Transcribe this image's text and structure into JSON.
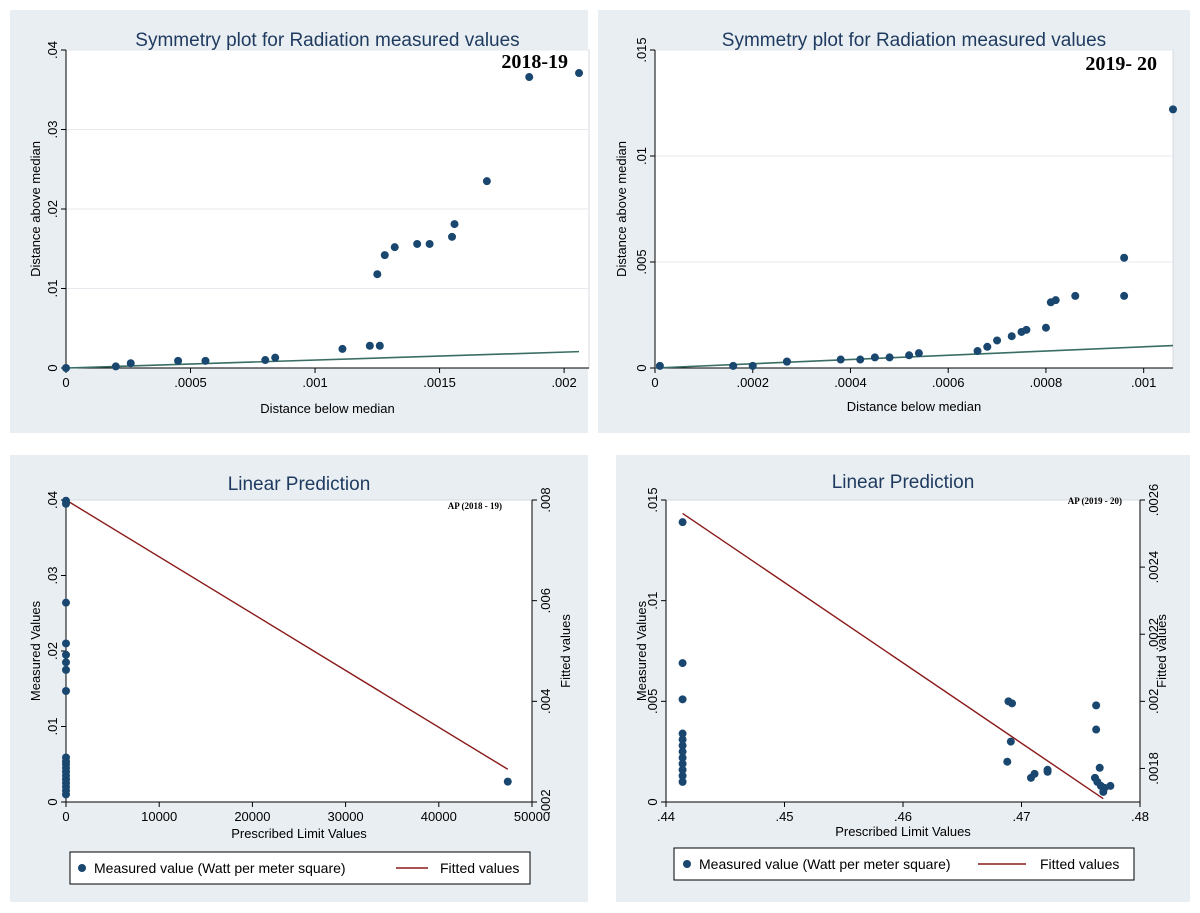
{
  "colors": {
    "panel_bg": "#e9eef2",
    "plot_bg": "#ffffff",
    "marker": "#1a476f",
    "ref_line": "#3a6e64",
    "fit_line": "#8b1a1a",
    "grid": "#e6eaee"
  },
  "chart_data": [
    {
      "type": "scatter",
      "title": "Symmetry plot for Radiation measured values",
      "annotation": "2018-19",
      "xlabel": "Distance below median",
      "ylabel": "Distance above median",
      "xlim": [
        0,
        0.0021
      ],
      "ylim": [
        0,
        0.04
      ],
      "xticks": [
        0,
        0.0005,
        0.001,
        0.0015,
        0.002
      ],
      "xtick_labels": [
        "0",
        ".0005",
        ".001",
        ".0015",
        ".002"
      ],
      "yticks": [
        0,
        0.01,
        0.02,
        0.03,
        0.04
      ],
      "ytick_labels": [
        "0",
        ".01",
        ".02",
        ".03",
        ".04"
      ],
      "grid": true,
      "points": [
        [
          0,
          0
        ],
        [
          0.0002,
          0.0002
        ],
        [
          0.00026,
          0.0006
        ],
        [
          0.00045,
          0.0009
        ],
        [
          0.00056,
          0.0009
        ],
        [
          0.0008,
          0.001
        ],
        [
          0.00084,
          0.0013
        ],
        [
          0.00111,
          0.0024
        ],
        [
          0.00122,
          0.0028
        ],
        [
          0.00126,
          0.0028
        ],
        [
          0.00125,
          0.0118
        ],
        [
          0.00128,
          0.0142
        ],
        [
          0.00132,
          0.0152
        ],
        [
          0.00141,
          0.0156
        ],
        [
          0.00146,
          0.0156
        ],
        [
          0.00155,
          0.0165
        ],
        [
          0.00156,
          0.0181
        ],
        [
          0.00169,
          0.0235
        ],
        [
          0.00186,
          0.0366
        ],
        [
          0.00206,
          0.0371
        ]
      ],
      "reference_line": [
        [
          0,
          0
        ],
        [
          0.00206,
          0.00206
        ]
      ]
    },
    {
      "type": "scatter",
      "title": "Symmetry plot for Radiation measured values",
      "annotation": "2019- 20",
      "xlabel": "Distance below median",
      "ylabel": "Distance above median",
      "xlim": [
        0,
        0.00106
      ],
      "ylim": [
        0,
        0.015
      ],
      "xticks": [
        0,
        0.0002,
        0.0004,
        0.0006,
        0.0008,
        0.001
      ],
      "xtick_labels": [
        "0",
        ".0002",
        ".0004",
        ".0006",
        ".0008",
        ".001"
      ],
      "yticks": [
        0,
        0.005,
        0.01,
        0.015
      ],
      "ytick_labels": [
        "0",
        ".005",
        ".01",
        ".015"
      ],
      "grid": true,
      "points": [
        [
          1e-05,
          0.0001
        ],
        [
          0.00016,
          0.0001
        ],
        [
          0.0002,
          0.0001
        ],
        [
          0.00027,
          0.0003
        ],
        [
          0.00027,
          0.0003
        ],
        [
          0.00038,
          0.0004
        ],
        [
          0.00042,
          0.0004
        ],
        [
          0.00045,
          0.0005
        ],
        [
          0.00048,
          0.0005
        ],
        [
          0.00052,
          0.0006
        ],
        [
          0.00054,
          0.0007
        ],
        [
          0.00066,
          0.0008
        ],
        [
          0.00068,
          0.001
        ],
        [
          0.0007,
          0.0013
        ],
        [
          0.00073,
          0.0015
        ],
        [
          0.00075,
          0.0017
        ],
        [
          0.00076,
          0.0018
        ],
        [
          0.0008,
          0.0019
        ],
        [
          0.00081,
          0.0031
        ],
        [
          0.00082,
          0.0032
        ],
        [
          0.00086,
          0.0034
        ],
        [
          0.00096,
          0.0034
        ],
        [
          0.00096,
          0.0052
        ],
        [
          0.00106,
          0.0122
        ]
      ],
      "reference_line": [
        [
          0,
          0
        ],
        [
          0.00106,
          0.00106
        ]
      ]
    },
    {
      "type": "scatter",
      "title": "Linear Prediction",
      "annotation": "AP (2018 - 19)",
      "xlabel": "Prescribed Limit Values",
      "ylabel": "Measured Values",
      "y2label": "Fitted values",
      "xlim": [
        0,
        50000
      ],
      "ylim": [
        0,
        0.04
      ],
      "y2lim": [
        0.002,
        0.008
      ],
      "xticks": [
        0,
        10000,
        20000,
        30000,
        40000,
        50000
      ],
      "xtick_labels": [
        "0",
        "10000",
        "20000",
        "30000",
        "40000",
        "50000"
      ],
      "yticks": [
        0,
        0.01,
        0.02,
        0.03,
        0.04
      ],
      "ytick_labels": [
        "0",
        ".01",
        ".02",
        ".03",
        ".04"
      ],
      "y2ticks": [
        0.002,
        0.004,
        0.006,
        0.008
      ],
      "y2tick_labels": [
        ".002",
        ".004",
        ".006",
        ".008"
      ],
      "grid": false,
      "points": [
        [
          0,
          0.0399
        ],
        [
          0,
          0.0395
        ],
        [
          0,
          0.0264
        ],
        [
          0,
          0.021
        ],
        [
          0,
          0.0195
        ],
        [
          0,
          0.0185
        ],
        [
          0,
          0.0175
        ],
        [
          0,
          0.0147
        ],
        [
          0,
          0.0059
        ],
        [
          0,
          0.0054
        ],
        [
          0,
          0.005
        ],
        [
          0,
          0.0045
        ],
        [
          0,
          0.004
        ],
        [
          0,
          0.0035
        ],
        [
          0,
          0.003
        ],
        [
          0,
          0.0025
        ],
        [
          0,
          0.002
        ],
        [
          0,
          0.0015
        ],
        [
          0,
          0.001
        ],
        [
          47400,
          0.0027
        ]
      ],
      "fitted_line": [
        [
          0,
          0.008
        ],
        [
          47400,
          0.00265
        ]
      ],
      "legend": {
        "position": "bottom",
        "items": [
          "Measured value (Watt per meter square)",
          "Fitted values"
        ]
      }
    },
    {
      "type": "scatter",
      "title": "Linear Prediction",
      "annotation": "AP (2019 - 20)",
      "xlabel": "Prescribed Limit Values",
      "ylabel": "Measured Values",
      "y2label": "Fitted values",
      "xlim": [
        0.44,
        0.48
      ],
      "ylim": [
        0,
        0.015
      ],
      "y2lim": [
        0.0017,
        0.0026
      ],
      "xticks": [
        0.44,
        0.45,
        0.46,
        0.47,
        0.48
      ],
      "xtick_labels": [
        ".44",
        ".45",
        ".46",
        ".47",
        ".48"
      ],
      "yticks": [
        0,
        0.005,
        0.01,
        0.015
      ],
      "ytick_labels": [
        "0",
        ".005",
        ".01",
        ".015"
      ],
      "y2ticks": [
        0.0018,
        0.002,
        0.0022,
        0.0024,
        0.0026
      ],
      "y2tick_labels": [
        ".0018",
        ".002",
        ".0022",
        ".0024",
        ".0026"
      ],
      "grid": false,
      "points": [
        [
          0.4414,
          0.0139
        ],
        [
          0.4414,
          0.0069
        ],
        [
          0.4414,
          0.0051
        ],
        [
          0.4414,
          0.0034
        ],
        [
          0.4414,
          0.0031
        ],
        [
          0.4414,
          0.0028
        ],
        [
          0.4414,
          0.0025
        ],
        [
          0.4414,
          0.0022
        ],
        [
          0.4414,
          0.0019
        ],
        [
          0.4414,
          0.0016
        ],
        [
          0.4414,
          0.0013
        ],
        [
          0.4414,
          0.001
        ],
        [
          0.4689,
          0.005
        ],
        [
          0.4692,
          0.0049
        ],
        [
          0.4691,
          0.003
        ],
        [
          0.4688,
          0.002
        ],
        [
          0.4708,
          0.0012
        ],
        [
          0.4711,
          0.0014
        ],
        [
          0.4722,
          0.0015
        ],
        [
          0.4722,
          0.0016
        ],
        [
          0.4763,
          0.0048
        ],
        [
          0.4763,
          0.0036
        ],
        [
          0.4766,
          0.0017
        ],
        [
          0.4762,
          0.0012
        ],
        [
          0.4764,
          0.001
        ],
        [
          0.4767,
          0.0008
        ],
        [
          0.477,
          0.0007
        ],
        [
          0.4769,
          0.0005
        ],
        [
          0.4775,
          0.0008
        ]
      ],
      "fitted_line": [
        [
          0.4414,
          0.00256
        ],
        [
          0.4769,
          0.00171
        ]
      ],
      "legend": {
        "position": "bottom",
        "items": [
          "Measured value (Watt per meter square)",
          "Fitted values"
        ]
      }
    }
  ]
}
